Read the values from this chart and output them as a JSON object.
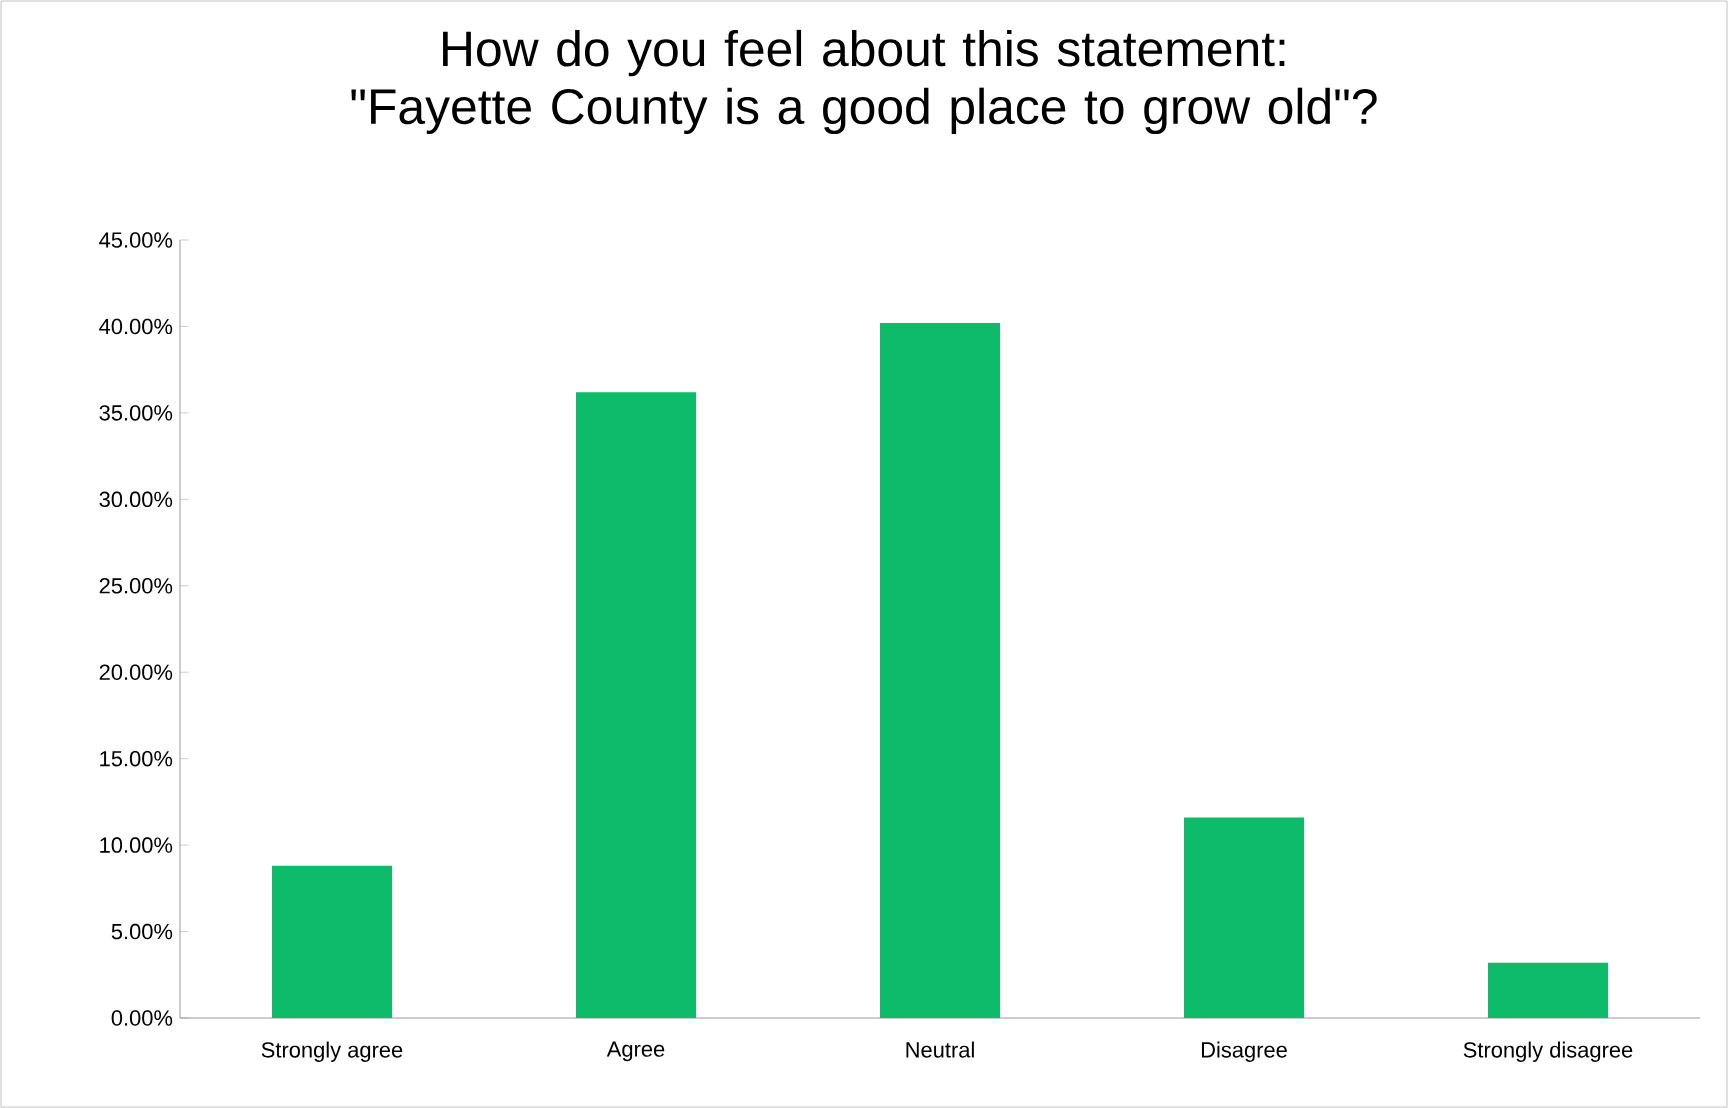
{
  "chart_data": {
    "type": "bar",
    "title": "How do you feel about this statement:\n\"Fayette County is a good place to grow old\"?",
    "categories": [
      "Strongly agree",
      "Agree",
      "Neutral",
      "Disagree",
      "Strongly disagree"
    ],
    "values": [
      8.8,
      36.2,
      40.2,
      11.6,
      3.2
    ],
    "color": "#0dbb6a",
    "ylim": [
      0,
      45
    ],
    "yticks": [
      {
        "value": 0,
        "label": "0.00%"
      },
      {
        "value": 5,
        "label": "5.00%"
      },
      {
        "value": 10,
        "label": "10.00%"
      },
      {
        "value": 15,
        "label": "15.00%"
      },
      {
        "value": 20,
        "label": "20.00%"
      },
      {
        "value": 25,
        "label": "25.00%"
      },
      {
        "value": 30,
        "label": "30.00%"
      },
      {
        "value": 35,
        "label": "35.00%"
      },
      {
        "value": 40,
        "label": "40.00%"
      },
      {
        "value": 45,
        "label": "45.00%"
      }
    ],
    "grid": false
  }
}
